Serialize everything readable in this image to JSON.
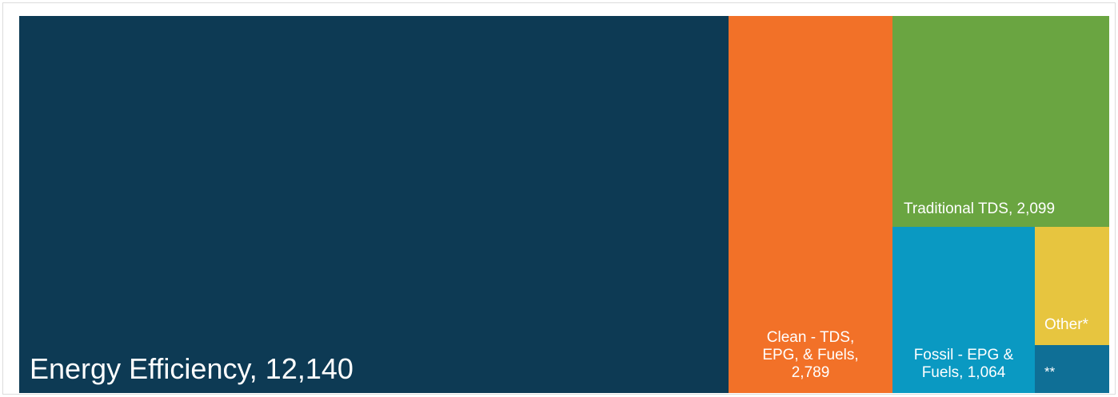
{
  "chart_data": {
    "type": "treemap",
    "title": "",
    "items": [
      {
        "name": "Energy Efficiency",
        "value": 12140,
        "label": "Energy Efficiency, 12,140",
        "color": "#0d3a54"
      },
      {
        "name": "Clean - TDS, EPG, & Fuels",
        "value": 2789,
        "label": "Clean - TDS,\nEPG, & Fuels,\n2,789",
        "color": "#f27128"
      },
      {
        "name": "Traditional TDS",
        "value": 2099,
        "label": "Traditional TDS, 2,099",
        "color": "#6aa541"
      },
      {
        "name": "Fossil - EPG & Fuels",
        "value": 1064,
        "label": "Fossil - EPG &\nFuels, 1,064",
        "color": "#0a99c2"
      },
      {
        "name": "Other*",
        "value": null,
        "label": "Other*",
        "color": "#e7c53f"
      },
      {
        "name": "**",
        "value": null,
        "label": "**",
        "color": "#0f6f96"
      }
    ]
  }
}
